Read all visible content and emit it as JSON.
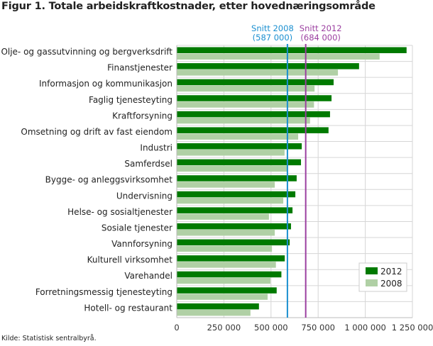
{
  "title": "Figur 1. Totale arbeidskraftkostnader, etter hovednæringsområde",
  "source": "Kilde: Statistisk sentralbyrå.",
  "chart_data": {
    "type": "bar",
    "orientation": "horizontal",
    "title": "Figur 1. Totale arbeidskraftkostnader, etter hovednæringsområde",
    "xlabel": "",
    "ylabel": "",
    "xlim": [
      0,
      1250000
    ],
    "xticks": [
      0,
      250000,
      500000,
      750000,
      1000000,
      1250000
    ],
    "xtick_labels": [
      "0",
      "250 000",
      "500 000",
      "750 000",
      "1 000 000",
      "1 250 000"
    ],
    "grid": true,
    "legend_position": "bottom-right",
    "categories": [
      "Olje- og gassutvinning og bergverksdrift",
      "Finanstjenester",
      "Informasjon og kommunikasjon",
      "Faglig tjenesteyting",
      "Kraftforsyning",
      "Omsetning og drift av fast eiendom",
      "Industri",
      "Samferdsel",
      "Bygge- og anleggsvirksomhet",
      "Undervisning",
      "Helse- og sosialtjenester",
      "Sosiale tjenester",
      "Vannforsyning",
      "Kulturell virksomhet",
      "Varehandel",
      "Forretningsmessig tjenesteyting",
      "Hotell- og restaurant"
    ],
    "series": [
      {
        "name": "2012",
        "color": "#007a00",
        "values": [
          1219000,
          967000,
          832000,
          821000,
          813000,
          805000,
          663000,
          659000,
          636000,
          629000,
          614000,
          606000,
          599000,
          573000,
          555000,
          530000,
          436000
        ]
      },
      {
        "name": "2008",
        "color": "#b0d0a5",
        "values": [
          1076000,
          855000,
          731000,
          728000,
          707000,
          644000,
          572000,
          587000,
          520000,
          565000,
          489000,
          520000,
          505000,
          526000,
          497000,
          482000,
          391000
        ]
      }
    ],
    "reference_lines": [
      {
        "label": "Snitt 2008",
        "value_label": "(587 000)",
        "value": 587000,
        "color": "#1a8fd0"
      },
      {
        "label": "Snitt 2012",
        "value_label": "(684 000)",
        "value": 684000,
        "color": "#9b3fa0"
      }
    ]
  }
}
